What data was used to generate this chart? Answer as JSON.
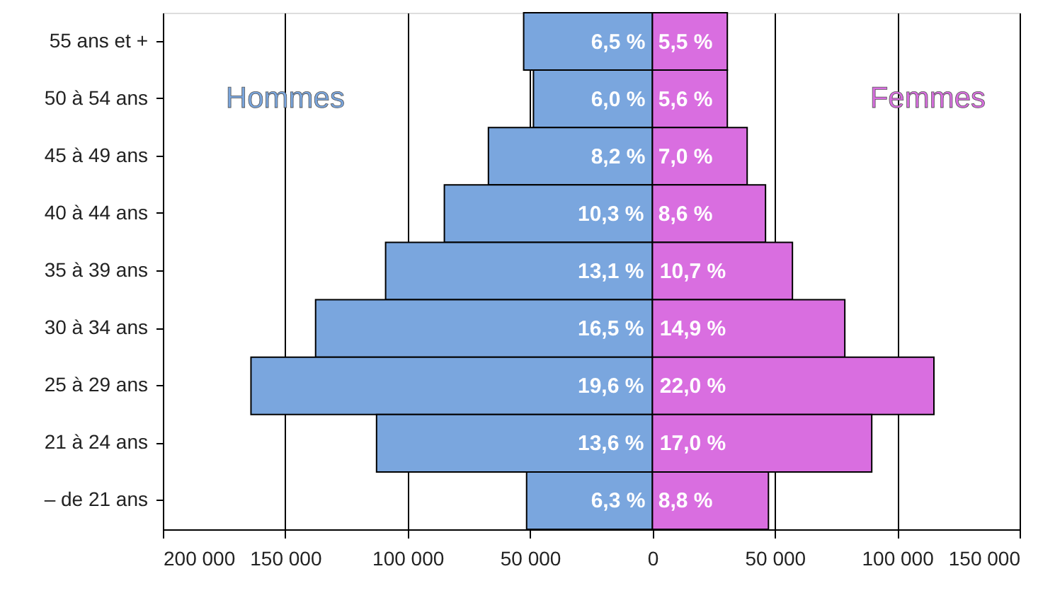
{
  "chart_data": {
    "type": "bar",
    "orientation": "horizontal",
    "categories": [
      "55 ans et +",
      "50 à 54 ans",
      "45 à 49 ans",
      "40 à 44 ans",
      "35 à 39 ans",
      "30 à 34 ans",
      "25 à 29 ans",
      "21 à 24 ans",
      "– de 21 ans"
    ],
    "series": [
      {
        "name": "Hommes",
        "color": "#7aa6de",
        "values": [
          -52600,
          -48600,
          -67000,
          -85000,
          -109000,
          -137600,
          -164000,
          -112700,
          -51400
        ]
      },
      {
        "name": "Femmes",
        "color": "#d96ee0",
        "values": [
          30600,
          30600,
          38700,
          46200,
          57200,
          78600,
          115000,
          89600,
          47400
        ]
      }
    ],
    "annotations": [
      {
        "text": "6,5 %",
        "x": -14000,
        "y": "55 ans et +"
      },
      {
        "text": "6,0 %",
        "x": -14000,
        "y": "50 à 54 ans"
      },
      {
        "text": "8,2 %",
        "x": -14000,
        "y": "45 à 49 ans"
      },
      {
        "text": "10,3 %",
        "x": -17000,
        "y": "40 à 44 ans"
      },
      {
        "text": "13,1 %",
        "x": -17000,
        "y": "35 à 39 ans"
      },
      {
        "text": "16,5 %",
        "x": -17000,
        "y": "30 à 34 ans"
      },
      {
        "text": "19,6 %",
        "x": -17000,
        "y": "25 à 29 ans"
      },
      {
        "text": "13,6 %",
        "x": -17000,
        "y": "21 à 24 ans"
      },
      {
        "text": "6,3 %",
        "x": -14000,
        "y": "– de 21 ans"
      },
      {
        "text": "5,5 %",
        "x": 13500,
        "y": "55 ans et +"
      },
      {
        "text": "5,6 %",
        "x": 13500,
        "y": "50 à 54 ans"
      },
      {
        "text": "7,0 %",
        "x": 13500,
        "y": "45 à 49 ans"
      },
      {
        "text": "8,6 %",
        "x": 13500,
        "y": "40 à 44 ans"
      },
      {
        "text": "10,7 %",
        "x": 16500,
        "y": "35 à 39 ans"
      },
      {
        "text": "14,9 %",
        "x": 16500,
        "y": "30 à 34 ans"
      },
      {
        "text": "22,0 %",
        "x": 16500,
        "y": "25 à 29 ans"
      },
      {
        "text": "17,0 %",
        "x": 16500,
        "y": "21 à 24 ans"
      },
      {
        "text": "8,8 %",
        "x": 13500,
        "y": "– de 21 ans"
      }
    ],
    "xlim": [
      -200000,
      150000
    ],
    "xticks": [
      {
        "value": -200000,
        "label": "200 000"
      },
      {
        "value": -150000,
        "label": "150 000"
      },
      {
        "value": -100000,
        "label": "100 000"
      },
      {
        "value": -50000,
        "label": "50 000"
      },
      0,
      {
        "value": 50000,
        "label": "50 000"
      },
      {
        "value": 100000,
        "label": "100 000"
      },
      {
        "value": 150000,
        "label": "150 000"
      }
    ],
    "grid": "x",
    "legend": false,
    "stacked": true
  }
}
